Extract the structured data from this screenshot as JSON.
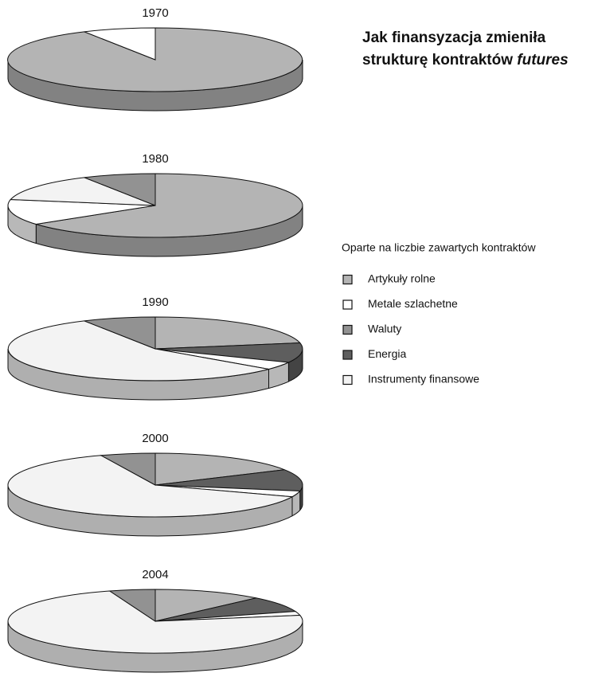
{
  "title": [
    "Jak finansyzacja zmieniła",
    "strukturę kontraktów",
    "futures"
  ],
  "subtitle": "Oparte na liczbie zawartych kontraktów",
  "legend": {
    "categories": [
      "Artykuły rolne",
      "Metale szlachetne",
      "Waluty",
      "Energia",
      "Instrumenty finansowe"
    ],
    "colors": [
      "#b4b4b4",
      "#ffffff",
      "#929292",
      "#5e5e5e",
      "#f3f3f3"
    ]
  },
  "chart_data": [
    {
      "type": "pie",
      "title": "1970",
      "values": [
        92,
        8,
        0,
        0,
        0
      ]
    },
    {
      "type": "pie",
      "title": "1980",
      "values": [
        65,
        13,
        8,
        0,
        14
      ]
    },
    {
      "type": "pie",
      "title": "1990",
      "values": [
        22,
        4,
        8,
        10,
        56
      ]
    },
    {
      "type": "pie",
      "title": "2000",
      "values": [
        17,
        3,
        6,
        11,
        63
      ]
    },
    {
      "type": "pie",
      "title": "2004",
      "values": [
        12,
        2,
        5,
        8,
        73
      ]
    }
  ]
}
